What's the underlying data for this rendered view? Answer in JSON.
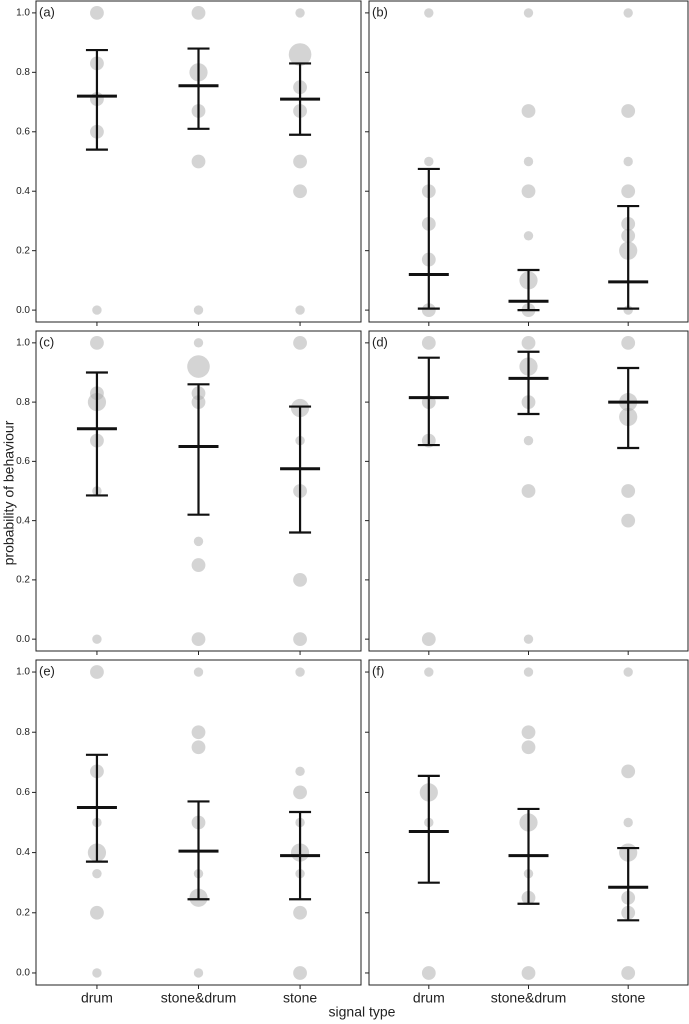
{
  "ylabel": "probability of behaviour",
  "xlabel": "signal type",
  "categories": [
    "drum",
    "stone&drum",
    "stone"
  ],
  "ylim": [
    -0.04,
    1.04
  ],
  "yticks": [
    {
      "value": 0,
      "label": "0.0"
    },
    0.2,
    0.4,
    0.6,
    0.8,
    {
      "value": 1,
      "label": "1.0"
    }
  ],
  "point_color": "#aaaaaa",
  "chart_data": [
    {
      "type": "errorbar",
      "title": "(a)",
      "values": [
        0.72,
        0.755,
        0.71
      ],
      "lower": [
        0.54,
        0.61,
        0.59
      ],
      "upper": [
        0.875,
        0.88,
        0.83
      ],
      "points": [
        [
          1.0,
          0.83,
          0.71,
          0.6,
          0.0
        ],
        [
          1.0,
          0.8,
          0.67,
          0.5,
          0.0
        ],
        [
          1.0,
          0.86,
          0.75,
          0.67,
          0.5,
          0.4,
          0.0
        ]
      ],
      "point_sizes": [
        [
          2,
          2,
          2,
          2,
          1
        ],
        [
          2,
          3,
          2,
          2,
          1
        ],
        [
          1,
          4,
          2,
          2,
          2,
          2,
          1
        ]
      ]
    },
    {
      "type": "errorbar",
      "title": "(b)",
      "values": [
        0.12,
        0.03,
        0.095
      ],
      "lower": [
        0.005,
        0.0,
        0.005
      ],
      "upper": [
        0.475,
        0.135,
        0.35
      ],
      "points": [
        [
          1.0,
          0.5,
          0.4,
          0.29,
          0.17,
          0.0
        ],
        [
          1.0,
          0.67,
          0.5,
          0.4,
          0.25,
          0.1,
          0.0
        ],
        [
          1.0,
          0.67,
          0.5,
          0.4,
          0.29,
          0.25,
          0.2,
          0.0
        ]
      ],
      "point_sizes": [
        [
          1,
          1,
          2,
          2,
          2,
          2
        ],
        [
          1,
          2,
          1,
          2,
          1,
          3,
          2
        ],
        [
          1,
          2,
          1,
          2,
          2,
          2,
          3,
          1
        ]
      ]
    },
    {
      "type": "errorbar",
      "title": "(c)",
      "values": [
        0.71,
        0.65,
        0.575
      ],
      "lower": [
        0.485,
        0.42,
        0.36
      ],
      "upper": [
        0.9,
        0.86,
        0.785
      ],
      "points": [
        [
          1.0,
          0.83,
          0.8,
          0.67,
          0.5,
          0.0
        ],
        [
          1.0,
          0.92,
          0.83,
          0.8,
          0.33,
          0.25,
          0.0
        ],
        [
          1.0,
          0.78,
          0.67,
          0.5,
          0.2,
          0.0
        ]
      ],
      "point_sizes": [
        [
          2,
          2,
          3,
          2,
          1,
          1
        ],
        [
          1,
          4,
          2,
          2,
          1,
          2,
          2
        ],
        [
          2,
          3,
          1,
          2,
          2,
          2
        ]
      ]
    },
    {
      "type": "errorbar",
      "title": "(d)",
      "values": [
        0.815,
        0.88,
        0.8
      ],
      "lower": [
        0.655,
        0.76,
        0.645
      ],
      "upper": [
        0.95,
        0.97,
        0.915
      ],
      "points": [
        [
          1.0,
          0.8,
          0.67,
          0.0
        ],
        [
          1.0,
          0.92,
          0.8,
          0.67,
          0.5,
          0.0
        ],
        [
          1.0,
          0.8,
          0.75,
          0.5,
          0.4
        ]
      ],
      "point_sizes": [
        [
          2,
          2,
          2,
          2
        ],
        [
          2,
          3,
          2,
          1,
          2,
          1
        ],
        [
          2,
          3,
          3,
          2,
          2
        ]
      ]
    },
    {
      "type": "errorbar",
      "title": "(e)",
      "values": [
        0.55,
        0.405,
        0.39
      ],
      "lower": [
        0.37,
        0.245,
        0.245
      ],
      "upper": [
        0.725,
        0.57,
        0.535
      ],
      "points": [
        [
          1.0,
          0.67,
          0.5,
          0.4,
          0.33,
          0.2,
          0.0
        ],
        [
          1.0,
          0.8,
          0.75,
          0.5,
          0.33,
          0.25,
          0.0
        ],
        [
          1.0,
          0.67,
          0.6,
          0.5,
          0.4,
          0.33,
          0.2,
          0.0
        ]
      ],
      "point_sizes": [
        [
          2,
          2,
          1,
          3,
          1,
          2,
          1
        ],
        [
          1,
          2,
          2,
          2,
          1,
          3,
          1
        ],
        [
          1,
          1,
          2,
          1,
          3,
          1,
          2,
          2
        ]
      ]
    },
    {
      "type": "errorbar",
      "title": "(f)",
      "values": [
        0.47,
        0.39,
        0.285
      ],
      "lower": [
        0.3,
        0.23,
        0.175
      ],
      "upper": [
        0.655,
        0.545,
        0.415
      ],
      "points": [
        [
          1.0,
          0.6,
          0.5,
          0.0
        ],
        [
          1.0,
          0.8,
          0.75,
          0.5,
          0.33,
          0.25,
          0.0
        ],
        [
          1.0,
          0.67,
          0.5,
          0.4,
          0.25,
          0.2,
          0.0
        ]
      ],
      "point_sizes": [
        [
          1,
          3,
          1,
          2
        ],
        [
          1,
          2,
          2,
          3,
          1,
          2,
          2
        ],
        [
          1,
          2,
          1,
          3,
          2,
          2,
          2
        ]
      ]
    }
  ]
}
